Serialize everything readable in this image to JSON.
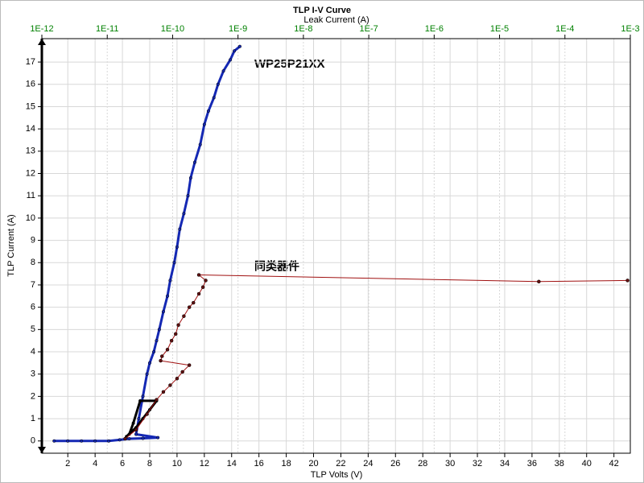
{
  "chart_data": {
    "type": "line",
    "title": "TLP I-V Curve",
    "x2_label": "Leak Current (A)",
    "x_label": "TLP Volts (V)",
    "y_label": "TLP Current (A)",
    "annotations": [
      "WP25P21XX",
      "同类器件"
    ],
    "xlim": [
      0.1,
      43.2
    ],
    "xticks": [
      2,
      4,
      6,
      8,
      10,
      12,
      14,
      16,
      18,
      20,
      22,
      24,
      26,
      28,
      30,
      32,
      34,
      36,
      38,
      40,
      42
    ],
    "ylim": [
      -0.55,
      18.05
    ],
    "yticks": [
      0,
      1,
      2,
      3,
      4,
      5,
      6,
      7,
      8,
      9,
      10,
      11,
      12,
      13,
      14,
      15,
      16,
      17
    ],
    "x2lim": [
      1e-12,
      0.001
    ],
    "x2_log": true,
    "x2ticks": [
      {
        "value": 1e-12,
        "label": "1E-12"
      },
      {
        "value": 1e-11,
        "label": "1E-11"
      },
      {
        "value": 1e-10,
        "label": "1E-10"
      },
      {
        "value": 1e-09,
        "label": "1E-9"
      },
      {
        "value": 1e-08,
        "label": "1E-8"
      },
      {
        "value": 1e-07,
        "label": "1E-7"
      },
      {
        "value": 1e-06,
        "label": "1E-6"
      },
      {
        "value": 1e-05,
        "label": "1E-5"
      },
      {
        "value": 0.0001,
        "label": "1E-4"
      },
      {
        "value": 0.001,
        "label": "1E-3"
      }
    ],
    "x2tick_color": "#008000",
    "grid": true,
    "series": [
      {
        "color": "#1428b4",
        "x": [
          1,
          2,
          3,
          4,
          5,
          5.8,
          6.5,
          7.5,
          8.6,
          7,
          7.2,
          7.5,
          7.8,
          8,
          8.3,
          8.5,
          8.7,
          9,
          9.3,
          9.5,
          9.8,
          10,
          10.2,
          10.5,
          10.8,
          11,
          11.3,
          11.7,
          12,
          12.3,
          12.7,
          13,
          13.4,
          13.9,
          14.2,
          14.6
        ],
        "values": [
          0,
          0,
          0,
          0,
          0,
          0.05,
          0.1,
          0.12,
          0.15,
          0.3,
          1,
          2,
          3,
          3.5,
          4,
          4.5,
          5,
          5.8,
          6.5,
          7.2,
          8,
          8.7,
          9.5,
          10.2,
          11,
          11.8,
          12.5,
          13.3,
          14.2,
          14.8,
          15.4,
          16,
          16.6,
          17.1,
          17.5,
          17.7
        ]
      },
      {
        "color": "#000000",
        "x": [
          6.3,
          7,
          7.5,
          8,
          8.5,
          7.3,
          6.8,
          6.5
        ],
        "values": [
          0.2,
          0.6,
          1,
          1.4,
          1.8,
          1.8,
          0.8,
          0.3
        ]
      },
      {
        "color": "#a01010",
        "x": [
          6.2,
          7,
          7.8,
          8.5,
          9,
          9.5,
          10,
          10.4,
          10.9,
          8.8,
          8.9,
          9.3,
          9.6,
          9.9,
          10.1,
          10.5,
          10.9,
          11.2,
          11.6,
          11.9,
          12.1,
          11.6,
          36.5,
          43
        ],
        "values": [
          0.1,
          0.5,
          1.2,
          1.85,
          2.2,
          2.5,
          2.8,
          3.1,
          3.4,
          3.6,
          3.8,
          4.1,
          4.5,
          4.8,
          5.2,
          5.6,
          6,
          6.2,
          6.6,
          6.9,
          7.2,
          7.45,
          7.15,
          7.2
        ]
      }
    ]
  }
}
